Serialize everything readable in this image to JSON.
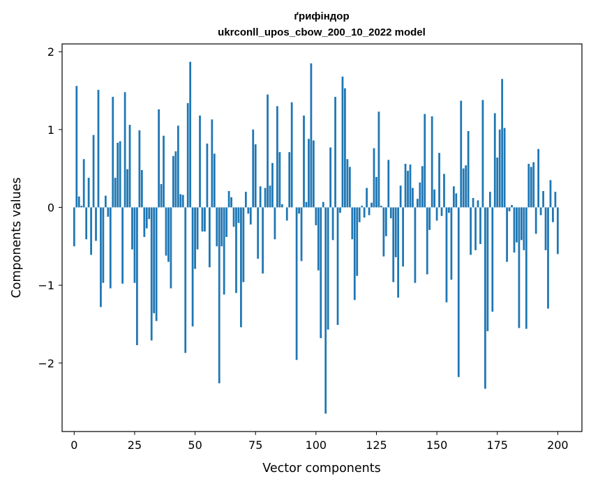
{
  "chart_data": {
    "type": "bar",
    "title_line1": "ґрифіндор",
    "title_line2": "ukrconll_upos_cbow_200_10_2022 model",
    "xlabel": "Vector components",
    "ylabel": "Components values",
    "xlim": [
      -5,
      210
    ],
    "ylim": [
      -2.88,
      2.1
    ],
    "xticks": [
      0,
      25,
      50,
      75,
      100,
      125,
      150,
      175,
      200
    ],
    "yticks": [
      2,
      1,
      0,
      -1,
      -2
    ],
    "ytick_labels": [
      "2",
      "1",
      "0",
      "−1",
      "−2"
    ],
    "bar_color": "#1f77b4",
    "grid": false,
    "values": [
      -0.5,
      1.56,
      0.14,
      0.02,
      0.62,
      -0.41,
      0.38,
      -0.61,
      0.93,
      -0.43,
      1.51,
      -1.28,
      -0.97,
      0.15,
      -0.12,
      -1.04,
      1.42,
      0.38,
      0.83,
      0.85,
      -0.98,
      1.48,
      0.49,
      1.06,
      -0.54,
      -0.97,
      -1.77,
      0.99,
      0.48,
      -0.38,
      -0.27,
      -0.15,
      -1.71,
      -1.36,
      -1.46,
      1.26,
      0.3,
      0.92,
      -0.62,
      -0.7,
      -1.04,
      0.66,
      0.72,
      1.05,
      0.17,
      0.16,
      -1.87,
      1.34,
      1.87,
      -1.53,
      -0.79,
      -0.54,
      1.18,
      -0.31,
      -0.31,
      0.82,
      -0.77,
      1.13,
      0.69,
      -0.5,
      -2.26,
      -0.5,
      -1.12,
      -0.38,
      0.21,
      0.13,
      -0.25,
      -1.1,
      -0.2,
      -1.54,
      -0.96,
      0.2,
      -0.08,
      -0.22,
      1.0,
      0.81,
      -0.66,
      0.27,
      -0.85,
      0.25,
      1.45,
      0.28,
      0.57,
      -0.41,
      1.3,
      0.71,
      0.04,
      0.0,
      -0.17,
      0.71,
      1.35,
      0.0,
      -1.96,
      -0.08,
      -0.69,
      1.18,
      0.07,
      0.88,
      1.85,
      0.86,
      -0.23,
      -0.81,
      -1.68,
      0.07,
      -2.65,
      -1.57,
      0.77,
      -0.42,
      1.42,
      -1.51,
      -0.07,
      1.68,
      1.53,
      0.62,
      0.52,
      -0.41,
      -1.19,
      -0.88,
      -0.19,
      0.02,
      -0.13,
      0.25,
      -0.1,
      0.06,
      0.76,
      0.39,
      1.23,
      0.02,
      -0.63,
      -0.37,
      0.61,
      -0.14,
      -0.96,
      -0.64,
      -1.16,
      0.28,
      -0.76,
      0.56,
      0.47,
      0.55,
      0.25,
      -0.97,
      0.11,
      0.32,
      0.53,
      1.2,
      -0.86,
      -0.29,
      1.17,
      0.23,
      -0.17,
      0.7,
      -0.11,
      0.43,
      -1.22,
      -0.07,
      -0.93,
      0.27,
      0.18,
      -2.18,
      1.37,
      0.5,
      0.54,
      0.98,
      -0.61,
      0.12,
      -0.55,
      0.09,
      -0.47,
      1.38,
      -2.33,
      -1.59,
      0.2,
      -1.34,
      1.21,
      0.64,
      1.0,
      1.65,
      1.02,
      -0.7,
      -0.05,
      0.03,
      -0.58,
      -0.45,
      -1.55,
      -0.42,
      -0.55,
      -1.56,
      0.56,
      0.52,
      0.58,
      -0.34,
      0.75,
      -0.1,
      0.21,
      -0.55,
      -1.3,
      0.35,
      -0.19,
      0.2,
      -0.6
    ]
  }
}
